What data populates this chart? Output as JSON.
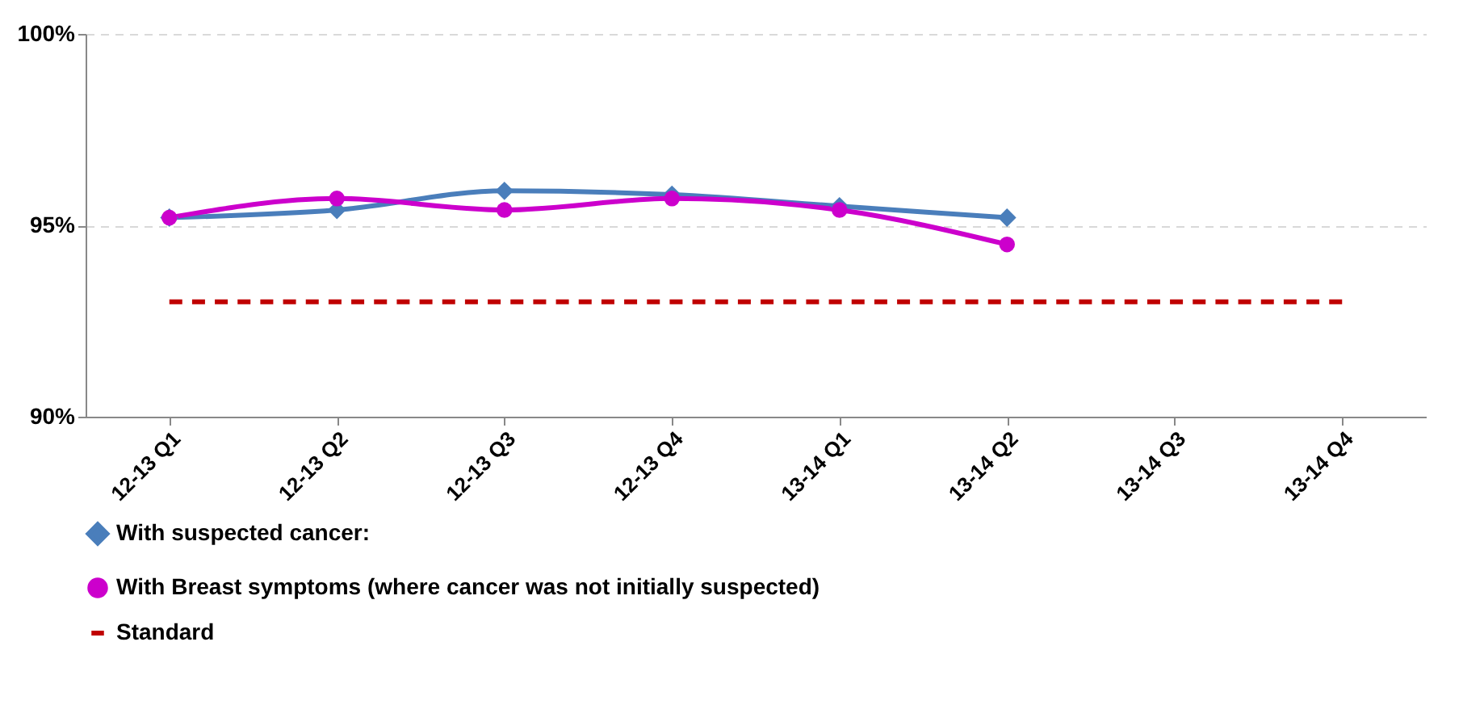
{
  "chart_data": {
    "type": "line",
    "categories": [
      "12-13 Q1",
      "12-13 Q2",
      "12-13 Q3",
      "12-13 Q4",
      "13-14 Q1",
      "13-14 Q2",
      "13-14 Q3",
      "13-14 Q4"
    ],
    "series": [
      {
        "name": "With suspected cancer:",
        "color": "#4a7ebb",
        "marker": "diamond",
        "line_style": "solid",
        "values": [
          95.2,
          95.4,
          95.9,
          95.8,
          95.5,
          95.2,
          null,
          null
        ]
      },
      {
        "name": "With Breast symptoms (where cancer was not initially suspected)",
        "color": "#cc00cc",
        "marker": "circle",
        "line_style": "solid",
        "values": [
          95.2,
          95.7,
          95.4,
          95.7,
          95.4,
          94.5,
          null,
          null
        ]
      },
      {
        "name": "Standard",
        "color": "#c00000",
        "marker": "none",
        "line_style": "dashed",
        "values": [
          93,
          93,
          93,
          93,
          93,
          93,
          93,
          93
        ]
      }
    ],
    "ylim": [
      90,
      100
    ],
    "yticks": [
      {
        "value": 90,
        "label": "90%"
      },
      {
        "value": 95,
        "label": "95%"
      },
      {
        "value": 100,
        "label": "100%"
      }
    ],
    "grid": "y",
    "legend": "bottom"
  }
}
